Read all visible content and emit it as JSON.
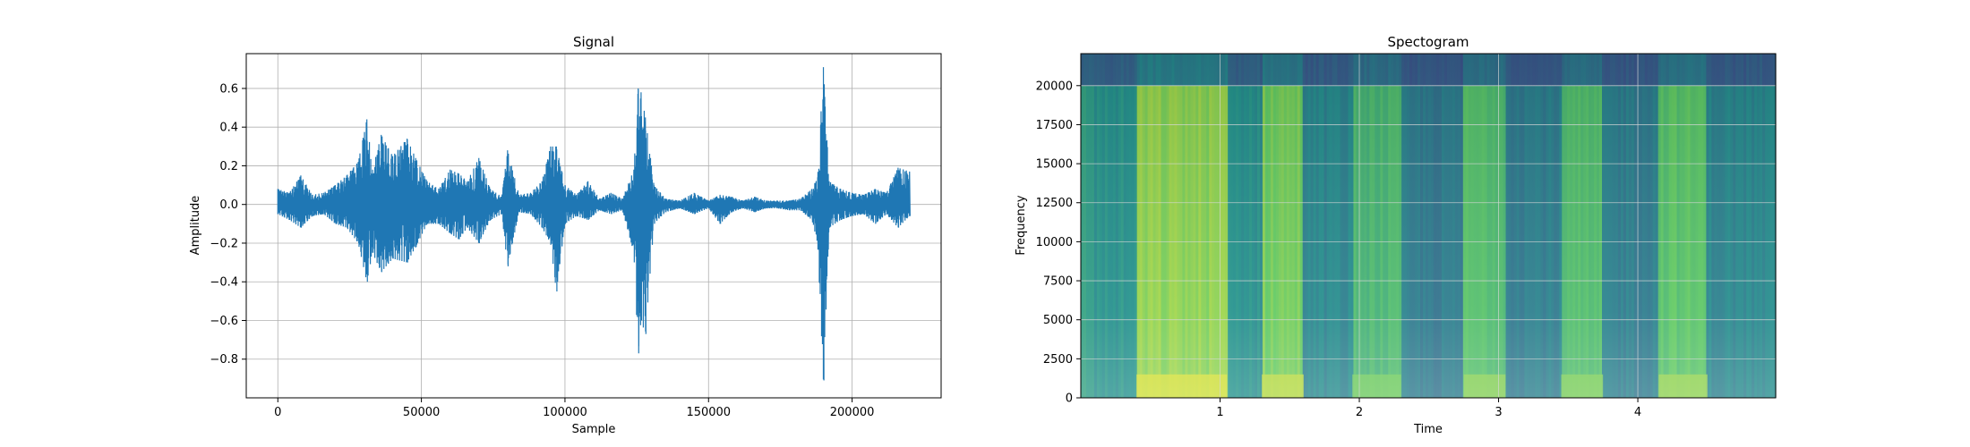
{
  "chart_data": [
    {
      "type": "line",
      "title": "Signal",
      "xlabel": "Sample",
      "ylabel": "Amplitude",
      "xlim": [
        -11000,
        231000
      ],
      "ylim": [
        -1.0,
        0.78
      ],
      "xticks": [
        {
          "value": 0,
          "label": "0"
        },
        {
          "value": 50000,
          "label": "50000"
        },
        {
          "value": 100000,
          "label": "100000"
        },
        {
          "value": 150000,
          "label": "150000"
        },
        {
          "value": 200000,
          "label": "200000"
        }
      ],
      "yticks": [
        {
          "value": 0.6,
          "label": "0.6"
        },
        {
          "value": 0.4,
          "label": "0.4"
        },
        {
          "value": 0.2,
          "label": "0.2"
        },
        {
          "value": 0.0,
          "label": "0.0"
        },
        {
          "value": -0.2,
          "label": "−0.2"
        },
        {
          "value": -0.4,
          "label": "−0.4"
        },
        {
          "value": -0.6,
          "label": "−0.6"
        },
        {
          "value": -0.8,
          "label": "−0.8"
        }
      ],
      "grid": true,
      "color": "#1f77b4",
      "series": [
        {
          "x": [
            0,
            4000,
            8000,
            12000,
            16000,
            20000,
            24000,
            28000,
            31000,
            33000,
            36000,
            40000,
            45000,
            48000,
            52000,
            56000,
            60000,
            63000,
            66000,
            70000,
            74000,
            78000,
            80000,
            84000,
            88000,
            92000,
            95000,
            97000,
            100000,
            104000,
            108000,
            112000,
            116000,
            120000,
            124000,
            125500,
            126500,
            128000,
            131000,
            135000,
            140000,
            145000,
            150000,
            154000,
            158000,
            162000,
            166000,
            170000,
            174000,
            178000,
            182000,
            186000,
            188000,
            190000,
            192000,
            196000,
            200000,
            204000,
            208000,
            212000,
            216000,
            220000
          ],
          "y": [
            0.08,
            0.06,
            0.15,
            0.05,
            0.06,
            0.1,
            0.15,
            0.22,
            0.44,
            0.18,
            0.36,
            0.25,
            0.34,
            0.24,
            0.12,
            0.08,
            0.18,
            0.16,
            0.12,
            0.24,
            0.08,
            0.04,
            0.28,
            0.05,
            0.06,
            0.12,
            0.3,
            0.3,
            0.1,
            0.05,
            0.12,
            0.03,
            0.06,
            0.03,
            0.18,
            0.6,
            0.58,
            0.45,
            0.1,
            0.03,
            0.02,
            0.06,
            0.02,
            0.05,
            0.04,
            0.02,
            0.04,
            0.02,
            0.02,
            0.02,
            0.03,
            0.08,
            0.14,
            0.71,
            0.12,
            0.08,
            0.06,
            0.05,
            0.08,
            0.06,
            0.19,
            0.17
          ],
          "y_min": [
            -0.05,
            -0.08,
            -0.12,
            -0.06,
            -0.05,
            -0.1,
            -0.12,
            -0.2,
            -0.4,
            -0.25,
            -0.35,
            -0.28,
            -0.3,
            -0.22,
            -0.1,
            -0.1,
            -0.15,
            -0.18,
            -0.12,
            -0.2,
            -0.08,
            -0.05,
            -0.32,
            -0.04,
            -0.05,
            -0.12,
            -0.2,
            -0.45,
            -0.1,
            -0.06,
            -0.08,
            -0.03,
            -0.05,
            -0.03,
            -0.25,
            -0.77,
            -0.6,
            -0.67,
            -0.1,
            -0.04,
            -0.02,
            -0.05,
            -0.02,
            -0.1,
            -0.04,
            -0.02,
            -0.04,
            -0.02,
            -0.02,
            -0.03,
            -0.03,
            -0.08,
            -0.2,
            -0.91,
            -0.12,
            -0.08,
            -0.06,
            -0.05,
            -0.1,
            -0.05,
            -0.12,
            -0.06
          ]
        }
      ]
    },
    {
      "type": "heatmap",
      "title": "Spectogram",
      "xlabel": "Time",
      "ylabel": "Frequency",
      "xlim": [
        0.0,
        4.99
      ],
      "ylim": [
        0,
        22050
      ],
      "xticks": [
        {
          "value": 1,
          "label": "1"
        },
        {
          "value": 2,
          "label": "2"
        },
        {
          "value": 3,
          "label": "3"
        },
        {
          "value": 4,
          "label": "4"
        }
      ],
      "yticks": [
        {
          "value": 0,
          "label": "0"
        },
        {
          "value": 2500,
          "label": "2500"
        },
        {
          "value": 5000,
          "label": "5000"
        },
        {
          "value": 7500,
          "label": "7500"
        },
        {
          "value": 10000,
          "label": "10000"
        },
        {
          "value": 12500,
          "label": "12500"
        },
        {
          "value": 15000,
          "label": "15000"
        },
        {
          "value": 17500,
          "label": "17500"
        },
        {
          "value": 20000,
          "label": "20000"
        }
      ],
      "grid": true,
      "colormap": "viridis",
      "cutoff_frequency": 20000,
      "energy_bands": [
        {
          "time": [
            0.0,
            0.1
          ],
          "level": 0.55
        },
        {
          "time": [
            0.1,
            0.4
          ],
          "level": 0.5
        },
        {
          "time": [
            0.4,
            1.05
          ],
          "level": 0.82
        },
        {
          "time": [
            1.05,
            1.3
          ],
          "level": 0.5
        },
        {
          "time": [
            1.3,
            1.6
          ],
          "level": 0.78
        },
        {
          "time": [
            1.6,
            1.95
          ],
          "level": 0.45
        },
        {
          "time": [
            1.95,
            2.3
          ],
          "level": 0.66
        },
        {
          "time": [
            2.3,
            2.75
          ],
          "level": 0.4
        },
        {
          "time": [
            2.75,
            3.05
          ],
          "level": 0.7
        },
        {
          "time": [
            3.05,
            3.45
          ],
          "level": 0.42
        },
        {
          "time": [
            3.45,
            3.75
          ],
          "level": 0.68
        },
        {
          "time": [
            3.75,
            4.15
          ],
          "level": 0.42
        },
        {
          "time": [
            4.15,
            4.5
          ],
          "level": 0.72
        },
        {
          "time": [
            4.5,
            4.99
          ],
          "level": 0.45
        }
      ]
    }
  ]
}
